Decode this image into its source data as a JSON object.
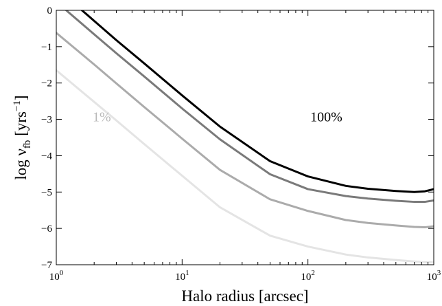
{
  "chart_data": {
    "type": "line",
    "xlabel": "Halo radius [arcsec]",
    "ylabel": "log ν_fb [yrs^-1]",
    "ylabel_parts": {
      "base": "log ν",
      "sub": "fb",
      "unit_open": " [yrs",
      "sup": "−1",
      "unit_close": "]"
    },
    "x_scale": "log",
    "xlim": [
      1,
      1000
    ],
    "ylim": [
      -7,
      0
    ],
    "x_ticks": [
      1,
      10,
      100,
      1000
    ],
    "x_tick_labels": [
      {
        "base": "10",
        "exp": "0"
      },
      {
        "base": "10",
        "exp": "1"
      },
      {
        "base": "10",
        "exp": "2"
      },
      {
        "base": "10",
        "exp": "3"
      }
    ],
    "y_ticks": [
      0,
      -1,
      -2,
      -3,
      -4,
      -5,
      -6,
      -7
    ],
    "y_tick_labels": [
      "0",
      "−1",
      "−2",
      "−3",
      "−4",
      "−5",
      "−6",
      "−7"
    ],
    "grid": false,
    "legend": "none",
    "annotations": [
      {
        "text": "100%",
        "x": 140,
        "y": -2.92,
        "color": "#000000"
      },
      {
        "text": "1%",
        "x": 2.3,
        "y": -2.92,
        "color": "#b8b8b8"
      }
    ],
    "series": [
      {
        "color": "#000000",
        "x": [
          1.6,
          2,
          3,
          5,
          10,
          20,
          50,
          100,
          200,
          300,
          500,
          700,
          850,
          1000
        ],
        "y": [
          0.0,
          -0.29,
          -0.82,
          -1.46,
          -2.34,
          -3.2,
          -4.15,
          -4.57,
          -4.83,
          -4.91,
          -4.97,
          -5.0,
          -4.98,
          -4.92
        ]
      },
      {
        "color": "#7a7a7a",
        "x": [
          1.2,
          2,
          3,
          5,
          10,
          20,
          50,
          100,
          200,
          300,
          500,
          700,
          850,
          1000
        ],
        "y": [
          0.0,
          -0.66,
          -1.18,
          -1.82,
          -2.7,
          -3.55,
          -4.51,
          -4.92,
          -5.11,
          -5.18,
          -5.24,
          -5.27,
          -5.27,
          -5.23
        ]
      },
      {
        "color": "#ababab",
        "x": [
          1,
          2,
          3,
          5,
          10,
          20,
          50,
          100,
          200,
          300,
          500,
          700,
          850,
          1000
        ],
        "y": [
          -0.62,
          -1.49,
          -2.01,
          -2.66,
          -3.53,
          -4.39,
          -5.2,
          -5.52,
          -5.77,
          -5.85,
          -5.92,
          -5.96,
          -5.97,
          -5.94
        ]
      },
      {
        "color": "#e4e4e4",
        "x": [
          1,
          2,
          3,
          5,
          10,
          20,
          50,
          100,
          200,
          300,
          500,
          700,
          850,
          1000
        ],
        "y": [
          -1.65,
          -2.52,
          -3.03,
          -3.68,
          -4.55,
          -5.42,
          -6.2,
          -6.5,
          -6.72,
          -6.8,
          -6.87,
          -6.91,
          -6.93,
          -6.93
        ]
      }
    ]
  }
}
